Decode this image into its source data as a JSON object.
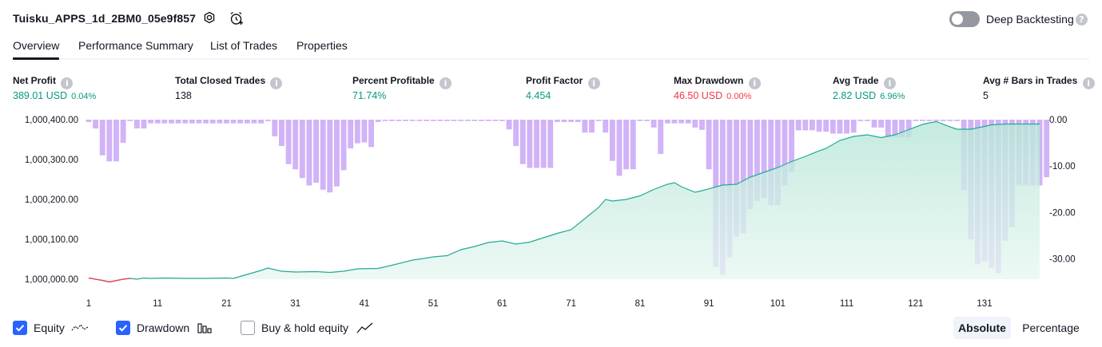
{
  "header": {
    "title": "Tuisku_APPS_1d_2BM0_05e9f857",
    "deep_backtesting_label": "Deep Backtesting",
    "deep_backtesting_on": false
  },
  "tabs": [
    {
      "label": "Overview",
      "active": true
    },
    {
      "label": "Performance Summary",
      "active": false
    },
    {
      "label": "List of Trades",
      "active": false
    },
    {
      "label": "Properties",
      "active": false
    }
  ],
  "metrics": {
    "net_profit": {
      "label": "Net Profit",
      "value": "389.01 USD",
      "pct": "0.04%"
    },
    "total_closed_trades": {
      "label": "Total Closed Trades",
      "value": "138"
    },
    "percent_profitable": {
      "label": "Percent Profitable",
      "value": "71.74%"
    },
    "profit_factor": {
      "label": "Profit Factor",
      "value": "4.454"
    },
    "max_drawdown": {
      "label": "Max Drawdown",
      "value": "46.50 USD",
      "pct": "0.00%"
    },
    "avg_trade": {
      "label": "Avg Trade",
      "value": "2.82 USD",
      "pct": "6.96%"
    },
    "avg_bars": {
      "label": "Avg # Bars in Trades",
      "value": "5"
    }
  },
  "legend": {
    "equity": {
      "label": "Equity",
      "checked": true
    },
    "drawdown": {
      "label": "Drawdown",
      "checked": true
    },
    "buy_hold": {
      "label": "Buy & hold equity",
      "checked": false
    }
  },
  "view_toggle": {
    "absolute": "Absolute",
    "percentage": "Percentage",
    "selected": "Absolute"
  },
  "colors": {
    "equity_line": "#22ab94",
    "equity_negative": "#f23645",
    "equity_fill": "#ccefe6",
    "drawdown_bar": "#d1b3f7",
    "accent": "#2962ff"
  },
  "chart_data": {
    "type": "area",
    "x_ticks": [
      1,
      11,
      21,
      31,
      41,
      51,
      61,
      71,
      81,
      91,
      101,
      111,
      121,
      131
    ],
    "x_range": [
      1,
      139
    ],
    "left_axis": {
      "ticks": [
        "1,000,400.00",
        "1,000,300.00",
        "1,000,200.00",
        "1,000,100.00",
        "1,000,000.00"
      ],
      "range": [
        1000000,
        1000400
      ]
    },
    "right_axis": {
      "ticks": [
        "0.00",
        "-10.00",
        "-20.00",
        "-30.00"
      ],
      "range": [
        -34.4,
        0
      ]
    },
    "equity": [
      [
        1,
        1000003
      ],
      [
        3,
        999997
      ],
      [
        4,
        999993
      ],
      [
        6,
        1000000
      ],
      [
        7,
        1000002
      ],
      [
        8,
        1000000
      ],
      [
        9,
        1000003
      ],
      [
        10,
        1000002
      ],
      [
        12,
        1000003
      ],
      [
        15,
        1000002
      ],
      [
        18,
        1000002
      ],
      [
        21,
        1000003
      ],
      [
        22,
        1000002
      ],
      [
        24,
        1000012
      ],
      [
        26,
        1000022
      ],
      [
        27,
        1000028
      ],
      [
        29,
        1000020
      ],
      [
        31,
        1000018
      ],
      [
        34,
        1000019
      ],
      [
        36,
        1000017
      ],
      [
        38,
        1000020
      ],
      [
        40,
        1000026
      ],
      [
        43,
        1000027
      ],
      [
        45,
        1000035
      ],
      [
        48,
        1000048
      ],
      [
        50,
        1000053
      ],
      [
        51,
        1000056
      ],
      [
        53,
        1000059
      ],
      [
        55,
        1000074
      ],
      [
        57,
        1000082
      ],
      [
        59,
        1000092
      ],
      [
        61,
        1000096
      ],
      [
        63,
        1000088
      ],
      [
        65,
        1000093
      ],
      [
        67,
        1000104
      ],
      [
        69,
        1000115
      ],
      [
        71,
        1000124
      ],
      [
        73,
        1000152
      ],
      [
        75,
        1000180
      ],
      [
        76,
        1000200
      ],
      [
        77,
        1000196
      ],
      [
        79,
        1000200
      ],
      [
        81,
        1000209
      ],
      [
        83,
        1000225
      ],
      [
        85,
        1000238
      ],
      [
        86,
        1000242
      ],
      [
        87,
        1000232
      ],
      [
        88,
        1000225
      ],
      [
        89,
        1000218
      ],
      [
        90,
        1000222
      ],
      [
        93,
        1000236
      ],
      [
        95,
        1000238
      ],
      [
        97,
        1000256
      ],
      [
        99,
        1000268
      ],
      [
        101,
        1000280
      ],
      [
        103,
        1000295
      ],
      [
        105,
        1000308
      ],
      [
        107,
        1000322
      ],
      [
        108,
        1000328
      ],
      [
        110,
        1000348
      ],
      [
        112,
        1000358
      ],
      [
        114,
        1000362
      ],
      [
        116,
        1000355
      ],
      [
        118,
        1000362
      ],
      [
        120,
        1000375
      ],
      [
        122,
        1000388
      ],
      [
        123,
        1000392
      ],
      [
        124,
        1000395
      ],
      [
        126,
        1000382
      ],
      [
        127,
        1000376
      ],
      [
        129,
        1000376
      ],
      [
        131,
        1000383
      ],
      [
        132,
        1000387
      ],
      [
        134,
        1000389
      ],
      [
        136,
        1000389
      ],
      [
        139,
        1000389
      ]
    ],
    "drawdown": [
      -0.5,
      -1.9,
      -7.7,
      -9.0,
      -9.0,
      -5.0,
      -0.3,
      -1.9,
      -1.9,
      -0.8,
      -0.8,
      -0.8,
      -0.8,
      -0.8,
      -0.8,
      -0.8,
      -0.8,
      -0.8,
      -0.8,
      -0.8,
      -0.8,
      -0.8,
      -0.8,
      -0.8,
      -0.8,
      -0.8,
      -0.3,
      -3.6,
      -5.7,
      -9.6,
      -10.7,
      -12.6,
      -14.2,
      -13.6,
      -15.1,
      -15.7,
      -14.4,
      -10.9,
      -6.2,
      -5.1,
      -4.9,
      -5.9,
      -0.5,
      -0.3,
      -0.3,
      -0.3,
      -0.3,
      -0.3,
      -0.3,
      -0.3,
      -0.3,
      -0.3,
      -0.3,
      -0.3,
      -0.3,
      -0.3,
      -0.3,
      -0.3,
      -0.3,
      -0.3,
      -0.3,
      -2.1,
      -5.7,
      -9.6,
      -10.4,
      -10.4,
      -10.4,
      -10.4,
      -0.5,
      -0.5,
      -0.5,
      -0.5,
      -2.8,
      -2.8,
      -0.3,
      -2.8,
      -8.9,
      -12.1,
      -10.7,
      -10.7,
      -0.3,
      -0.3,
      -1.7,
      -7.4,
      -0.8,
      -0.8,
      -0.8,
      -0.8,
      -1.7,
      -2.2,
      -10.7,
      -31.8,
      -33.5,
      -29.7,
      -25.2,
      -24.5,
      -19.3,
      -17.5,
      -16.9,
      -18.4,
      -18.4,
      -14.2,
      -11.2,
      -2.3,
      -2.3,
      -2.3,
      -2.6,
      -2.6,
      -3.0,
      -3.0,
      -3.0,
      -2.8,
      -0.3,
      -0.3,
      -1.7,
      -1.7,
      -3.8,
      -3.8,
      -3.8,
      -3.8,
      -0.3,
      -0.3,
      -0.3,
      -0.3,
      -0.3,
      -0.3,
      -0.3,
      -15.2,
      -25.8,
      -31.2,
      -30.6,
      -32.0,
      -33.1,
      -26.1,
      -23.2,
      -14.2,
      -14.2,
      -14.2,
      -14.2,
      -12.4
    ]
  }
}
